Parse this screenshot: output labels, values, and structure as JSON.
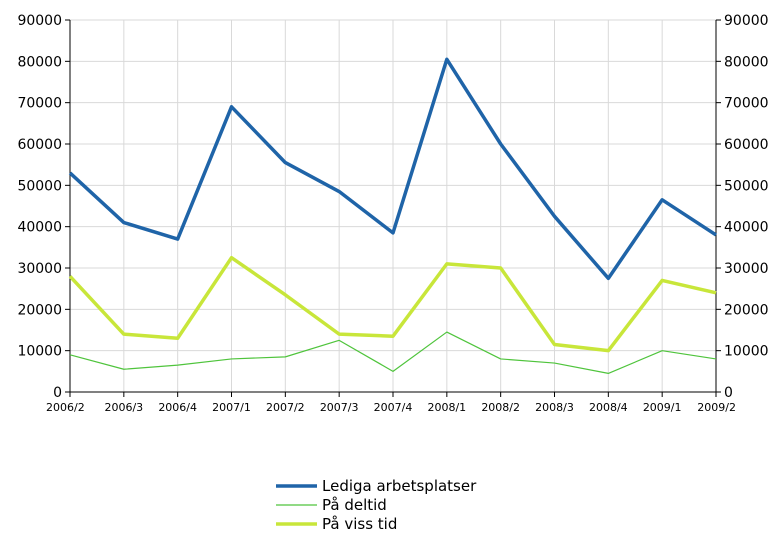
{
  "chart_data": {
    "type": "line",
    "categories": [
      "2006/2",
      "2006/3",
      "2006/4",
      "2007/1",
      "2007/2",
      "2007/3",
      "2007/4",
      "2008/1",
      "2008/2",
      "2008/3",
      "2008/4",
      "2009/1",
      "2009/2"
    ],
    "series": [
      {
        "name": "Lediga arbetsplatser",
        "color": "#1f64a8",
        "values": [
          53000,
          41000,
          37000,
          69000,
          55500,
          48500,
          38500,
          80500,
          60000,
          42500,
          27500,
          46500,
          38000
        ]
      },
      {
        "name": "På deltid",
        "color": "#4fc43c",
        "values": [
          9000,
          5500,
          6500,
          8000,
          8500,
          12500,
          5000,
          14500,
          8000,
          7000,
          4500,
          10000,
          8000
        ]
      },
      {
        "name": "På viss tid",
        "color": "#c8e63a",
        "values": [
          28000,
          14000,
          13000,
          32500,
          23500,
          14000,
          13500,
          31000,
          30000,
          11500,
          10000,
          27000,
          24000
        ]
      }
    ],
    "y_ticks": [
      "0",
      "10000",
      "20000",
      "30000",
      "40000",
      "50000",
      "60000",
      "70000",
      "80000",
      "90000"
    ],
    "ylim": [
      0,
      90000
    ],
    "axes": "left-and-right",
    "grid": true,
    "legend_position": "bottom-center"
  }
}
